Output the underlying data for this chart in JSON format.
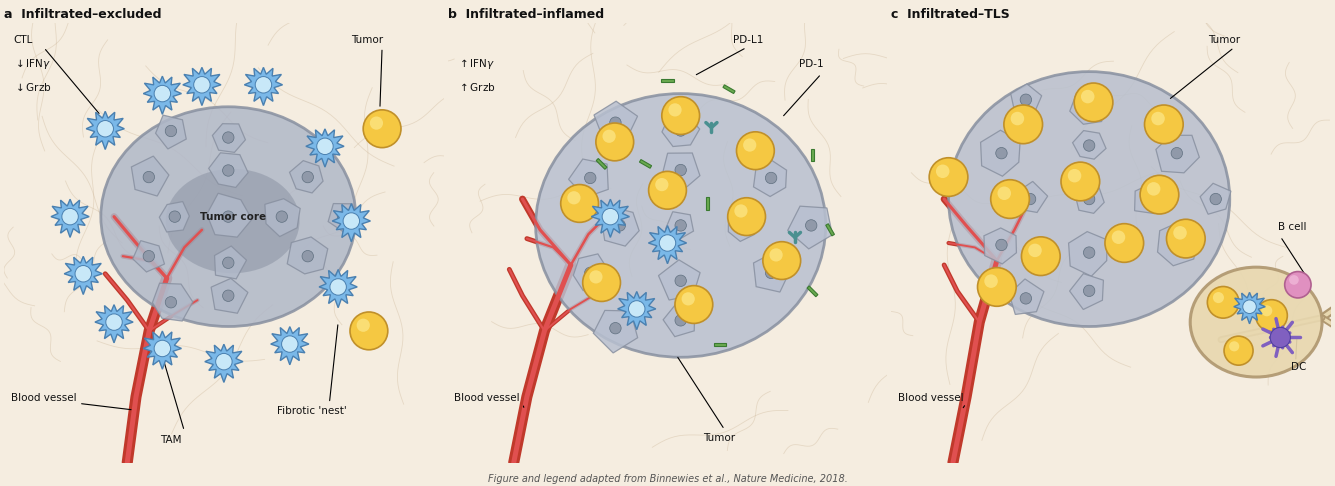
{
  "bg_color": "#f5ede0",
  "panel_titles": [
    "a  Infiltrated–excluded",
    "b  Infiltrated–inflamed",
    "c  Infiltrated–TLS"
  ],
  "tumor_color": "#b0b8c8",
  "tumor_border_color": "#8890a0",
  "tumor_core_color": "#8c94a4",
  "ctl_color": "#7ab8e8",
  "ctl_center_color": "#c8e8f8",
  "ctl_edge_color": "#4a80b0",
  "yellow_cell_color": "#f5c842",
  "yellow_cell_highlight": "#fde88a",
  "yellow_cell_edge": "#c0902a",
  "blood_vessel_outer": "#c0392b",
  "blood_vessel_inner": "#e05050",
  "fiber_color": "#c8b090",
  "pdl1_color": "#6aaa50",
  "pdl1_edge": "#3a7a30",
  "pd1_color": "#4a9090",
  "bcell_color": "#e090c0",
  "bcell_edge": "#b06090",
  "bcell_highlight": "#f0b8d8",
  "dc_color": "#8060c0",
  "dc_edge": "#5040a0",
  "tls_fill": "#e8d8b0",
  "tls_edge": "#b09870",
  "nucleus_face": "#9099a9",
  "nucleus_edge": "#607080",
  "annotation_color": "#111111",
  "footer_text": "Figure and legend adapted from Binnewies et al., Nature Medicine, 2018."
}
